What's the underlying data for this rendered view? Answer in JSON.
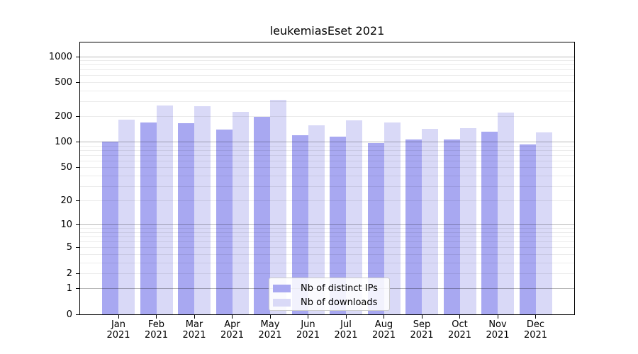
{
  "chart_data": {
    "type": "bar",
    "title": "leukemiasEset 2021",
    "categories": [
      "Jan 2021",
      "Feb 2021",
      "Mar 2021",
      "Apr 2021",
      "May 2021",
      "Jun 2021",
      "Jul 2021",
      "Aug 2021",
      "Sep 2021",
      "Oct 2021",
      "Nov 2021",
      "Dec 2021"
    ],
    "series": [
      {
        "name": "Nb of distinct IPs",
        "color": "#a8a8f1",
        "values": [
          101,
          171,
          167,
          141,
          200,
          122,
          116,
          97,
          108,
          107,
          133,
          95
        ]
      },
      {
        "name": "Nb of downloads",
        "color": "#d9d9f7",
        "values": [
          183,
          270,
          264,
          225,
          315,
          157,
          180,
          172,
          144,
          146,
          222,
          130
        ]
      }
    ],
    "xlabel": "",
    "ylabel": "",
    "yscale": "log1p",
    "ylim": [
      0,
      1464
    ],
    "yticks": [
      0,
      1,
      2,
      5,
      10,
      20,
      50,
      100,
      200,
      500,
      1000
    ],
    "grid": true,
    "legend_position": "lower center"
  }
}
